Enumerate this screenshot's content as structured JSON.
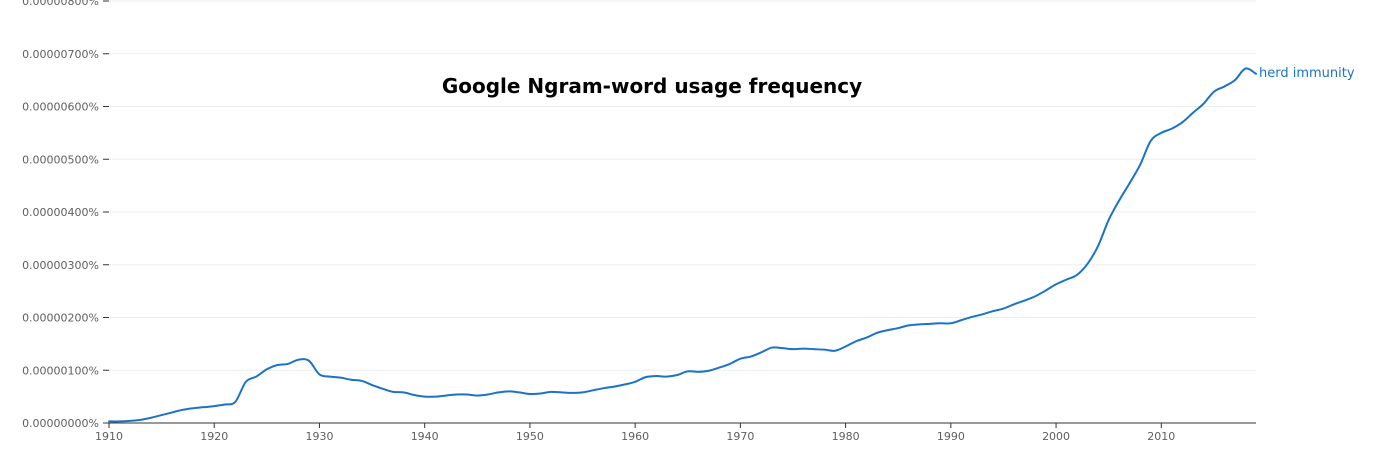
{
  "chart_data": {
    "type": "line",
    "title": "Google Ngram-word usage frequency",
    "xlabel": "",
    "ylabel": "",
    "xlim": [
      1910,
      2019
    ],
    "ylim": [
      0,
      8e-06
    ],
    "x_ticks": [
      1910,
      1920,
      1930,
      1940,
      1950,
      1960,
      1970,
      1980,
      1990,
      2000,
      2010
    ],
    "y_ticks": [
      0,
      1e-06,
      2e-06,
      3e-06,
      4e-06,
      5e-06,
      6e-06,
      7e-06,
      8e-06
    ],
    "y_tick_labels": [
      "0.00000000%",
      "0.00000100%",
      "0.00000200%",
      "0.00000300%",
      "0.00000400%",
      "0.00000500%",
      "0.00000600%",
      "0.00000700%",
      "0.00000800%"
    ],
    "x_tick_labels": [
      "1910",
      "1920",
      "1930",
      "1940",
      "1950",
      "1960",
      "1970",
      "1980",
      "1990",
      "2000",
      "2010"
    ],
    "grid": true,
    "legend": "end-of-line label",
    "colors": {
      "line": "#1a73c8",
      "grid": "#ededed",
      "axis": "#333333",
      "tick_text": "#5f5f5f"
    },
    "series": [
      {
        "name": "herd immunity",
        "x": [
          1910,
          1911,
          1912,
          1913,
          1914,
          1915,
          1916,
          1917,
          1918,
          1919,
          1920,
          1921,
          1922,
          1923,
          1924,
          1925,
          1926,
          1927,
          1928,
          1929,
          1930,
          1931,
          1932,
          1933,
          1934,
          1935,
          1936,
          1937,
          1938,
          1939,
          1940,
          1941,
          1942,
          1943,
          1944,
          1945,
          1946,
          1947,
          1948,
          1949,
          1950,
          1951,
          1952,
          1953,
          1954,
          1955,
          1956,
          1957,
          1958,
          1959,
          1960,
          1961,
          1962,
          1963,
          1964,
          1965,
          1966,
          1967,
          1968,
          1969,
          1970,
          1971,
          1972,
          1973,
          1974,
          1975,
          1976,
          1977,
          1978,
          1979,
          1980,
          1981,
          1982,
          1983,
          1984,
          1985,
          1986,
          1987,
          1988,
          1989,
          1990,
          1991,
          1992,
          1993,
          1994,
          1995,
          1996,
          1997,
          1998,
          1999,
          2000,
          2001,
          2002,
          2003,
          2004,
          2005,
          2006,
          2007,
          2008,
          2009,
          2010,
          2011,
          2012,
          2013,
          2014,
          2015,
          2016,
          2017,
          2018,
          2019
        ],
        "y": [
          3e-08,
          3e-08,
          4e-08,
          6e-08,
          1e-07,
          1.5e-07,
          2e-07,
          2.5e-07,
          2.8e-07,
          3e-07,
          3.2e-07,
          3.5e-07,
          4e-07,
          7.8e-07,
          8.8e-07,
          1.02e-06,
          1.1e-06,
          1.12e-06,
          1.2e-06,
          1.18e-06,
          9.2e-07,
          8.8e-07,
          8.6e-07,
          8.2e-07,
          8e-07,
          7.2e-07,
          6.5e-07,
          5.9e-07,
          5.8e-07,
          5.3e-07,
          5e-07,
          5e-07,
          5.2e-07,
          5.4e-07,
          5.4e-07,
          5.2e-07,
          5.4e-07,
          5.8e-07,
          6e-07,
          5.8e-07,
          5.5e-07,
          5.6e-07,
          5.9e-07,
          5.8e-07,
          5.7e-07,
          5.8e-07,
          6.2e-07,
          6.6e-07,
          6.9e-07,
          7.3e-07,
          7.8e-07,
          8.7e-07,
          8.9e-07,
          8.8e-07,
          9.1e-07,
          9.8e-07,
          9.7e-07,
          9.9e-07,
          1.05e-06,
          1.12e-06,
          1.22e-06,
          1.26e-06,
          1.34e-06,
          1.43e-06,
          1.42e-06,
          1.4e-06,
          1.41e-06,
          1.4e-06,
          1.39e-06,
          1.37e-06,
          1.45e-06,
          1.55e-06,
          1.62e-06,
          1.71e-06,
          1.76e-06,
          1.8e-06,
          1.85e-06,
          1.87e-06,
          1.88e-06,
          1.89e-06,
          1.89e-06,
          1.95e-06,
          2.01e-06,
          2.06e-06,
          2.12e-06,
          2.17e-06,
          2.25e-06,
          2.32e-06,
          2.4e-06,
          2.51e-06,
          2.63e-06,
          2.72e-06,
          2.81e-06,
          3.02e-06,
          3.36e-06,
          3.85e-06,
          4.22e-06,
          4.55e-06,
          4.9e-06,
          5.35e-06,
          5.5e-06,
          5.58e-06,
          5.7e-06,
          5.88e-06,
          6.05e-06,
          6.28e-06,
          6.38e-06,
          6.5e-06,
          6.72e-06,
          6.62e-06
        ]
      }
    ]
  }
}
